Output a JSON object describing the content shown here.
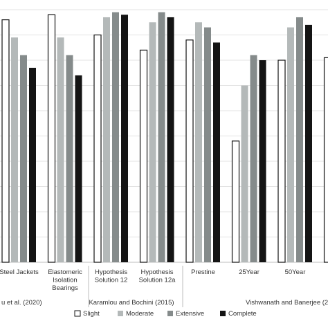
{
  "chart_data": {
    "type": "bar",
    "ylim": [
      0,
      1
    ],
    "grid": true,
    "legend_position": "bottom",
    "categories": [
      "Steel Jackets",
      "Elastomeric Isolation Bearings",
      "Hypothesis Solution 12",
      "Hypothesis Solution 12a",
      "Prestine",
      "25Year",
      "50Year",
      ""
    ],
    "series": [
      {
        "name": "Slight",
        "color": "#ffffff",
        "values": [
          0.96,
          0.98,
          0.9,
          0.84,
          0.88,
          0.48,
          0.8,
          0.81
        ]
      },
      {
        "name": "Moderate",
        "color": "#b4b9b9",
        "values": [
          0.89,
          0.89,
          0.97,
          0.95,
          0.95,
          0.7,
          0.93,
          null
        ]
      },
      {
        "name": "Extensive",
        "color": "#858b8b",
        "values": [
          0.82,
          0.82,
          0.99,
          0.99,
          0.93,
          0.82,
          0.97,
          null
        ]
      },
      {
        "name": "Complete",
        "color": "#141414",
        "values": [
          0.77,
          0.74,
          0.98,
          0.97,
          0.87,
          0.8,
          0.94,
          null
        ]
      }
    ],
    "groups": [
      {
        "label": "u et al. (2020)",
        "from": 0,
        "to": 1
      },
      {
        "label": "Karamlou and Bochini (2015)",
        "from": 2,
        "to": 3
      },
      {
        "label": "Vishwanath and Banerjee (20",
        "from": 4,
        "to": 7
      }
    ]
  }
}
